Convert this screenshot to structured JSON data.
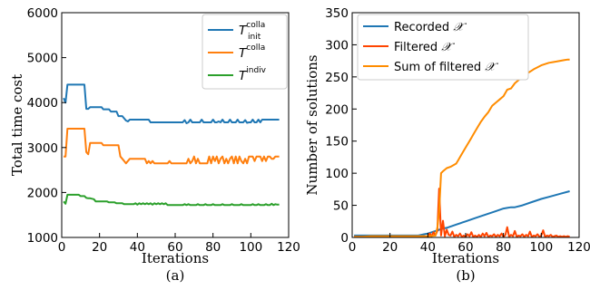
{
  "chart_data": [
    {
      "type": "line",
      "caption": "(a)",
      "xlabel": "Iterations",
      "ylabel": "Total time cost",
      "xlim": [
        0,
        120
      ],
      "ylim": [
        1000,
        6000
      ],
      "xticks": [
        0,
        20,
        40,
        60,
        80,
        100,
        120
      ],
      "yticks": [
        1000,
        2000,
        3000,
        4000,
        5000,
        6000
      ],
      "grid": false,
      "legend_position": "top-right",
      "series": [
        {
          "name": "T_init^colla",
          "legend": {
            "main": "T",
            "sub": "init",
            "sup": "colla"
          },
          "color": "#1f77b4",
          "x": [
            1,
            2,
            3,
            4,
            5,
            6,
            7,
            8,
            9,
            10,
            11,
            12,
            13,
            14,
            15,
            16,
            17,
            18,
            19,
            20,
            21,
            22,
            23,
            24,
            25,
            26,
            27,
            28,
            29,
            30,
            31,
            32,
            33,
            34,
            35,
            36,
            37,
            38,
            39,
            40,
            41,
            42,
            43,
            44,
            45,
            46,
            47,
            48,
            49,
            50,
            51,
            52,
            53,
            54,
            55,
            56,
            57,
            58,
            59,
            60,
            61,
            62,
            63,
            64,
            65,
            66,
            67,
            68,
            69,
            70,
            71,
            72,
            73,
            74,
            75,
            76,
            77,
            78,
            79,
            80,
            81,
            82,
            83,
            84,
            85,
            86,
            87,
            88,
            89,
            90,
            91,
            92,
            93,
            94,
            95,
            96,
            97,
            98,
            99,
            100,
            101,
            102,
            103,
            104,
            105,
            106,
            107,
            108,
            109,
            110,
            111,
            112,
            113,
            114,
            115
          ],
          "values": [
            4100,
            4000,
            4400,
            4400,
            4400,
            4400,
            4400,
            4400,
            4400,
            4400,
            4400,
            4400,
            3860,
            3860,
            3900,
            3900,
            3900,
            3900,
            3900,
            3900,
            3900,
            3850,
            3850,
            3850,
            3850,
            3800,
            3800,
            3800,
            3800,
            3700,
            3700,
            3700,
            3650,
            3600,
            3580,
            3620,
            3620,
            3620,
            3620,
            3620,
            3620,
            3620,
            3620,
            3620,
            3620,
            3620,
            3560,
            3560,
            3560,
            3560,
            3560,
            3560,
            3560,
            3560,
            3560,
            3560,
            3560,
            3560,
            3560,
            3560,
            3560,
            3560,
            3560,
            3560,
            3610,
            3540,
            3560,
            3620,
            3560,
            3560,
            3560,
            3560,
            3560,
            3620,
            3560,
            3560,
            3560,
            3560,
            3560,
            3620,
            3560,
            3560,
            3580,
            3560,
            3620,
            3560,
            3560,
            3560,
            3620,
            3560,
            3560,
            3560,
            3620,
            3560,
            3560,
            3560,
            3610,
            3550,
            3560,
            3560,
            3620,
            3560,
            3560,
            3620,
            3560,
            3620,
            3620,
            3620,
            3620,
            3620,
            3620,
            3620,
            3620,
            3620,
            3620
          ]
        },
        {
          "name": "T^colla",
          "legend": {
            "main": "T",
            "sub": "",
            "sup": "colla"
          },
          "color": "#ff7f0e",
          "x": [
            1,
            2,
            3,
            4,
            5,
            6,
            7,
            8,
            9,
            10,
            11,
            12,
            13,
            14,
            15,
            16,
            17,
            18,
            19,
            20,
            21,
            22,
            23,
            24,
            25,
            26,
            27,
            28,
            29,
            30,
            31,
            32,
            33,
            34,
            35,
            36,
            37,
            38,
            39,
            40,
            41,
            42,
            43,
            44,
            45,
            46,
            47,
            48,
            49,
            50,
            51,
            52,
            53,
            54,
            55,
            56,
            57,
            58,
            59,
            60,
            61,
            62,
            63,
            64,
            65,
            66,
            67,
            68,
            69,
            70,
            71,
            72,
            73,
            74,
            75,
            76,
            77,
            78,
            79,
            80,
            81,
            82,
            83,
            84,
            85,
            86,
            87,
            88,
            89,
            90,
            91,
            92,
            93,
            94,
            95,
            96,
            97,
            98,
            99,
            100,
            101,
            102,
            103,
            104,
            105,
            106,
            107,
            108,
            109,
            110,
            111,
            112,
            113,
            114,
            115
          ],
          "values": [
            2800,
            2800,
            3420,
            3420,
            3420,
            3420,
            3420,
            3420,
            3420,
            3420,
            3420,
            3420,
            2900,
            2850,
            3100,
            3100,
            3100,
            3100,
            3100,
            3100,
            3100,
            3050,
            3050,
            3050,
            3050,
            3050,
            3050,
            3050,
            3050,
            3050,
            2800,
            2750,
            2700,
            2650,
            2700,
            2750,
            2750,
            2750,
            2750,
            2750,
            2750,
            2750,
            2750,
            2750,
            2650,
            2700,
            2650,
            2700,
            2650,
            2650,
            2650,
            2650,
            2650,
            2650,
            2650,
            2650,
            2700,
            2650,
            2650,
            2650,
            2650,
            2650,
            2650,
            2650,
            2650,
            2650,
            2750,
            2650,
            2700,
            2800,
            2650,
            2750,
            2650,
            2650,
            2650,
            2650,
            2650,
            2800,
            2650,
            2800,
            2700,
            2800,
            2650,
            2750,
            2800,
            2650,
            2750,
            2650,
            2750,
            2800,
            2650,
            2800,
            2650,
            2800,
            2700,
            2650,
            2750,
            2650,
            2800,
            2800,
            2800,
            2700,
            2800,
            2800,
            2800,
            2700,
            2800,
            2700,
            2800,
            2800,
            2750,
            2750,
            2800,
            2800,
            2800
          ]
        },
        {
          "name": "T^indiv",
          "legend": {
            "main": "T",
            "sub": "",
            "sup": "indiv"
          },
          "color": "#2ca02c",
          "x": [
            1,
            2,
            3,
            4,
            5,
            6,
            7,
            8,
            9,
            10,
            11,
            12,
            13,
            14,
            15,
            16,
            17,
            18,
            19,
            20,
            21,
            22,
            23,
            24,
            25,
            26,
            27,
            28,
            29,
            30,
            31,
            32,
            33,
            34,
            35,
            36,
            37,
            38,
            39,
            40,
            41,
            42,
            43,
            44,
            45,
            46,
            47,
            48,
            49,
            50,
            51,
            52,
            53,
            54,
            55,
            56,
            57,
            58,
            59,
            60,
            61,
            62,
            63,
            64,
            65,
            66,
            67,
            68,
            69,
            70,
            71,
            72,
            73,
            74,
            75,
            76,
            77,
            78,
            79,
            80,
            81,
            82,
            83,
            84,
            85,
            86,
            87,
            88,
            89,
            90,
            91,
            92,
            93,
            94,
            95,
            96,
            97,
            98,
            99,
            100,
            101,
            102,
            103,
            104,
            105,
            106,
            107,
            108,
            109,
            110,
            111,
            112,
            113,
            114,
            115
          ],
          "values": [
            1800,
            1750,
            1950,
            1950,
            1950,
            1950,
            1950,
            1950,
            1950,
            1920,
            1920,
            1920,
            1880,
            1870,
            1870,
            1860,
            1850,
            1800,
            1800,
            1800,
            1800,
            1800,
            1800,
            1800,
            1780,
            1780,
            1780,
            1780,
            1760,
            1760,
            1760,
            1760,
            1740,
            1740,
            1740,
            1740,
            1740,
            1740,
            1760,
            1730,
            1760,
            1740,
            1760,
            1740,
            1760,
            1740,
            1760,
            1730,
            1760,
            1740,
            1760,
            1740,
            1760,
            1740,
            1760,
            1720,
            1720,
            1720,
            1720,
            1720,
            1720,
            1720,
            1720,
            1720,
            1740,
            1720,
            1740,
            1720,
            1720,
            1720,
            1720,
            1740,
            1720,
            1720,
            1720,
            1740,
            1720,
            1720,
            1720,
            1740,
            1720,
            1720,
            1720,
            1720,
            1740,
            1720,
            1720,
            1720,
            1720,
            1740,
            1720,
            1720,
            1720,
            1720,
            1740,
            1720,
            1720,
            1720,
            1720,
            1720,
            1740,
            1720,
            1720,
            1740,
            1720,
            1720,
            1720,
            1740,
            1720,
            1720,
            1750,
            1720,
            1740,
            1730,
            1730
          ]
        }
      ]
    },
    {
      "type": "line",
      "caption": "(b)",
      "xlabel": "Iterations",
      "ylabel": "Number of solutions",
      "xlim": [
        0,
        120
      ],
      "ylim": [
        0,
        350
      ],
      "xticks": [
        0,
        20,
        40,
        60,
        80,
        100,
        120
      ],
      "yticks": [
        0,
        50,
        100,
        150,
        200,
        250,
        300,
        350
      ],
      "grid": false,
      "legend_position": "top-left",
      "series": [
        {
          "name": "Recorded 𝒳",
          "legend_text": "Recorded",
          "legend_symbol": "𝒳",
          "color": "#1f77b4",
          "x": [
            1,
            5,
            10,
            20,
            30,
            35,
            38,
            40,
            42,
            44,
            46,
            48,
            50,
            55,
            60,
            65,
            70,
            75,
            80,
            82,
            84,
            86,
            90,
            95,
            100,
            105,
            110,
            115
          ],
          "values": [
            3,
            3,
            3,
            3,
            3,
            3,
            5,
            6,
            8,
            10,
            12,
            14,
            15,
            20,
            25,
            30,
            35,
            40,
            45,
            46,
            47,
            47,
            50,
            55,
            60,
            64,
            68,
            72
          ]
        },
        {
          "name": "Filtered 𝒳",
          "legend_text": "Filtered",
          "legend_symbol": "𝒳",
          "color": "#ff4500",
          "x": [
            1,
            10,
            20,
            30,
            35,
            38,
            40,
            41,
            42,
            43,
            44,
            45,
            46,
            47,
            48,
            49,
            50,
            51,
            52,
            53,
            54,
            55,
            56,
            57,
            58,
            59,
            60,
            61,
            62,
            63,
            64,
            65,
            66,
            67,
            68,
            69,
            70,
            71,
            72,
            73,
            74,
            75,
            76,
            77,
            78,
            79,
            80,
            81,
            82,
            83,
            84,
            85,
            86,
            87,
            88,
            89,
            90,
            91,
            92,
            93,
            94,
            95,
            96,
            97,
            98,
            99,
            100,
            101,
            102,
            103,
            104,
            105,
            106,
            107,
            108,
            109,
            110,
            111,
            112,
            113,
            114,
            115
          ],
          "values": [
            1,
            1,
            1,
            1,
            1,
            2,
            1,
            6,
            2,
            8,
            3,
            10,
            76,
            3,
            26,
            2,
            12,
            4,
            3,
            9,
            1,
            4,
            2,
            6,
            1,
            3,
            1,
            5,
            2,
            8,
            1,
            3,
            1,
            4,
            1,
            6,
            2,
            7,
            1,
            3,
            2,
            5,
            1,
            4,
            2,
            6,
            1,
            4,
            16,
            1,
            4,
            2,
            10,
            1,
            3,
            2,
            5,
            1,
            4,
            2,
            9,
            1,
            3,
            2,
            5,
            1,
            3,
            11,
            1,
            3,
            2,
            4,
            1,
            2,
            3,
            1,
            2,
            1,
            2,
            1,
            2,
            1
          ]
        },
        {
          "name": "Sum of filtered 𝒳",
          "legend_text": "Sum of filtered",
          "legend_symbol": "𝒳",
          "color": "#ff8c00",
          "x": [
            1,
            5,
            10,
            20,
            30,
            35,
            40,
            44,
            45,
            46,
            47,
            48,
            50,
            52,
            55,
            56,
            58,
            60,
            62,
            63,
            64,
            66,
            68,
            70,
            72,
            74,
            76,
            78,
            80,
            82,
            84,
            86,
            88,
            90,
            92,
            94,
            96,
            98,
            100,
            102,
            104,
            106,
            108,
            110,
            112,
            114,
            115
          ],
          "values": [
            1,
            1,
            2,
            2,
            2,
            2,
            2,
            3,
            15,
            40,
            100,
            103,
            108,
            110,
            115,
            120,
            130,
            140,
            150,
            155,
            160,
            170,
            180,
            188,
            195,
            205,
            210,
            215,
            220,
            230,
            232,
            240,
            245,
            250,
            255,
            258,
            262,
            265,
            268,
            270,
            272,
            273,
            274,
            275,
            276,
            277,
            277
          ]
        }
      ]
    }
  ]
}
